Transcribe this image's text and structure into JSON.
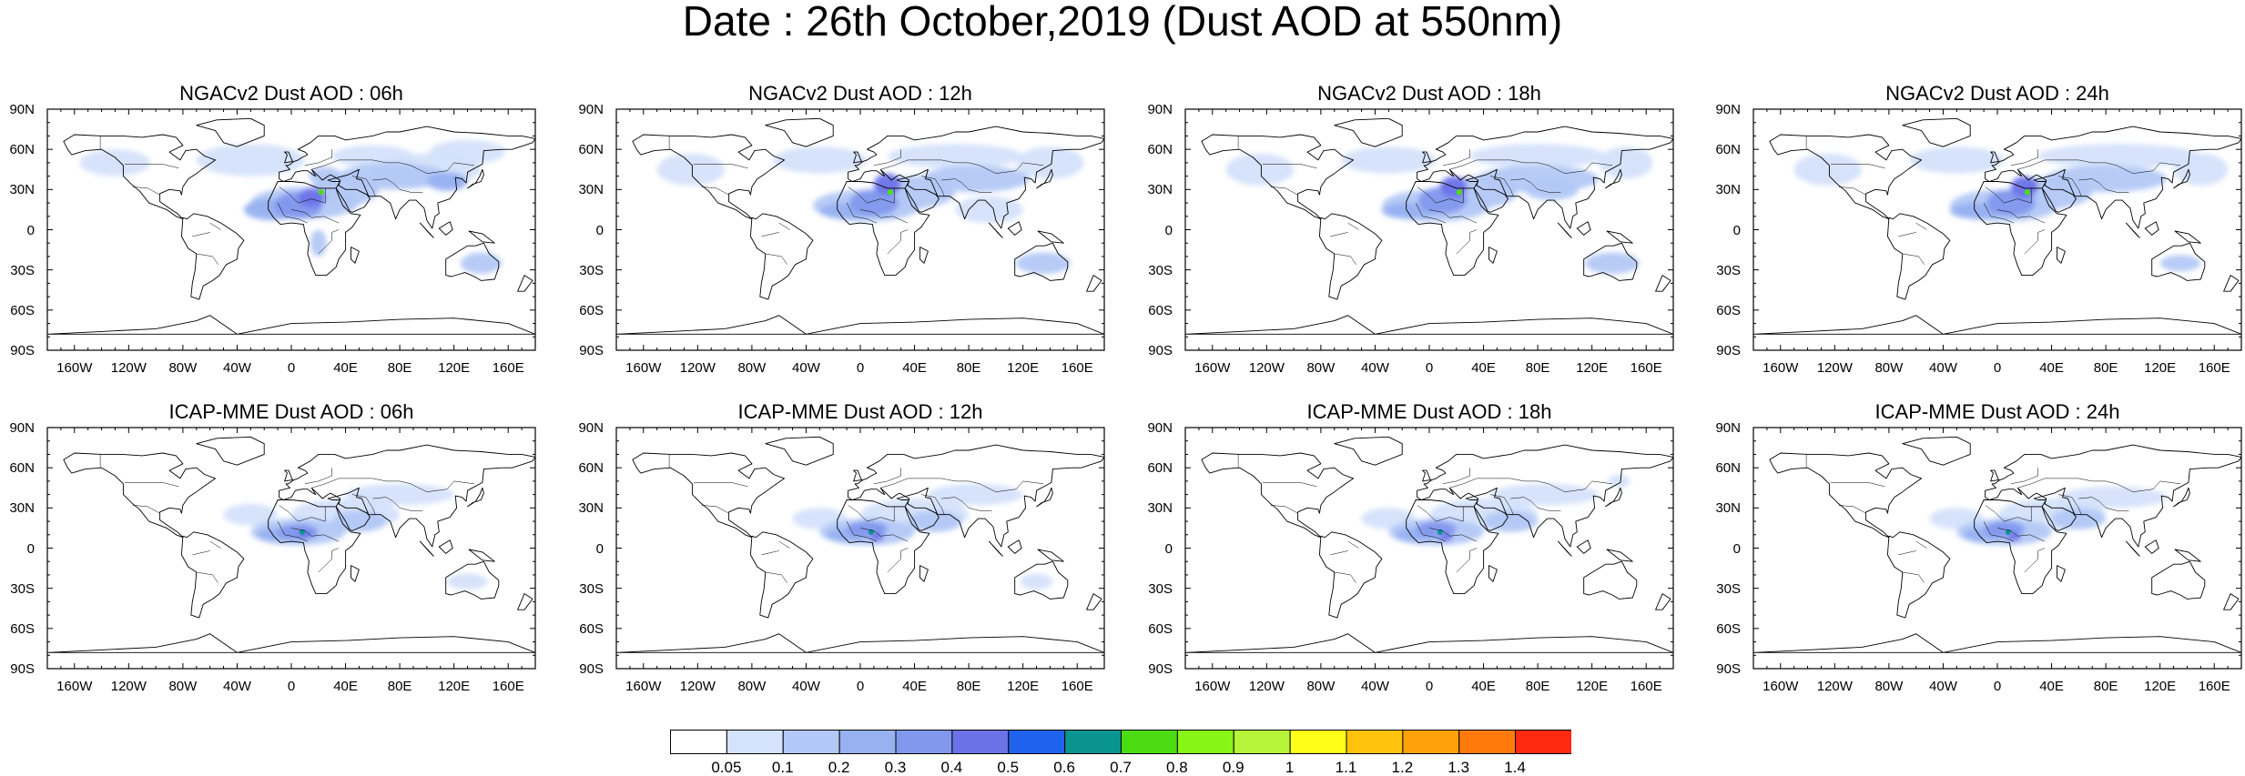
{
  "title": "Date : 26th October,2019 (Dust AOD at 550nm)",
  "panels": [
    {
      "title": "NGACv2 Dust AOD : 06h",
      "model": "ngac"
    },
    {
      "title": "NGACv2 Dust AOD : 12h",
      "model": "ngac"
    },
    {
      "title": "NGACv2 Dust AOD : 18h",
      "model": "ngac"
    },
    {
      "title": "NGACv2 Dust AOD : 24h",
      "model": "ngac"
    },
    {
      "title": "ICAP-MME Dust AOD : 06h",
      "model": "icap"
    },
    {
      "title": "ICAP-MME Dust AOD : 12h",
      "model": "icap"
    },
    {
      "title": "ICAP-MME Dust AOD : 18h",
      "model": "icap"
    },
    {
      "title": "ICAP-MME Dust AOD : 24h",
      "model": "icap"
    }
  ],
  "lat_labels": [
    "90N",
    "60N",
    "30N",
    "0",
    "30S",
    "60S",
    "90S"
  ],
  "lon_labels": [
    "160W",
    "120W",
    "80W",
    "40W",
    "0",
    "40E",
    "80E",
    "120E",
    "160E"
  ],
  "colorbar": {
    "colors": [
      "#ffffff",
      "#d4e2fb",
      "#b3c8f6",
      "#97b1f1",
      "#8298ed",
      "#6b72e8",
      "#1f62ee",
      "#0a9490",
      "#4cdc13",
      "#87f516",
      "#b7f53b",
      "#ffff1a",
      "#ffc30e",
      "#ffa10a",
      "#ff7a0a",
      "#ff2a0f"
    ],
    "labels": [
      "0.05",
      "0.1",
      "0.2",
      "0.3",
      "0.4",
      "0.5",
      "0.6",
      "0.7",
      "0.8",
      "0.9",
      "1",
      "1.1",
      "1.2",
      "1.3",
      "1.4"
    ]
  }
}
